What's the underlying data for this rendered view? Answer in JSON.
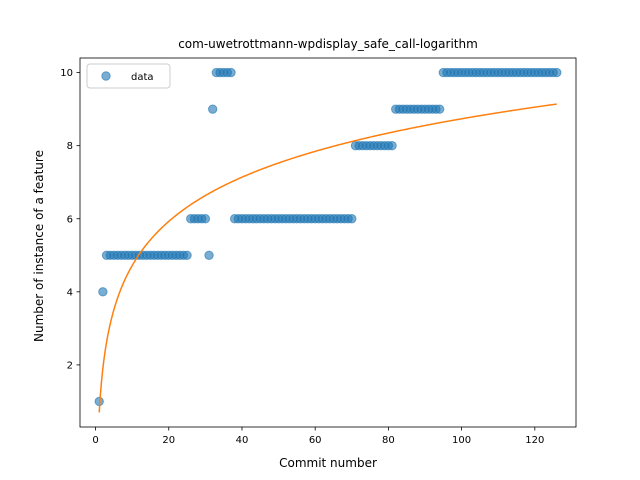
{
  "chart_data": {
    "type": "scatter",
    "title": "com-uwetrottmann-wpdisplay_safe_call-logarithm",
    "xlabel": "Commit number",
    "ylabel": "Number of instance of a feature",
    "xlim": [
      -4.25,
      131.25
    ],
    "ylim": [
      0.3,
      10.4
    ],
    "xticks": [
      0,
      20,
      40,
      60,
      80,
      100,
      120
    ],
    "yticks": [
      2,
      4,
      6,
      8,
      10
    ],
    "grid": false,
    "legend": {
      "position": "top-left",
      "entries": [
        "data"
      ]
    },
    "series": [
      {
        "name": "data",
        "kind": "scatter",
        "color": "#1f77b4",
        "x": [
          1,
          2,
          3,
          4,
          5,
          6,
          7,
          8,
          9,
          10,
          11,
          12,
          13,
          14,
          15,
          16,
          17,
          18,
          19,
          20,
          21,
          22,
          23,
          24,
          25,
          26,
          27,
          28,
          29,
          30,
          31,
          32,
          33,
          34,
          35,
          36,
          37,
          38,
          39,
          40,
          41,
          42,
          43,
          44,
          45,
          46,
          47,
          48,
          49,
          50,
          51,
          52,
          53,
          54,
          55,
          56,
          57,
          58,
          59,
          60,
          61,
          62,
          63,
          64,
          65,
          66,
          67,
          68,
          69,
          70,
          71,
          72,
          73,
          74,
          75,
          76,
          77,
          78,
          79,
          80,
          81,
          82,
          83,
          84,
          85,
          86,
          87,
          88,
          89,
          90,
          91,
          92,
          93,
          94,
          95,
          96,
          97,
          98,
          99,
          100,
          101,
          102,
          103,
          104,
          105,
          106,
          107,
          108,
          109,
          110,
          111,
          112,
          113,
          114,
          115,
          116,
          117,
          118,
          119,
          120,
          121,
          122,
          123,
          124,
          125,
          126
        ],
        "y": [
          1,
          4,
          5,
          5,
          5,
          5,
          5,
          5,
          5,
          5,
          5,
          5,
          5,
          5,
          5,
          5,
          5,
          5,
          5,
          5,
          5,
          5,
          5,
          5,
          5,
          6,
          6,
          6,
          6,
          6,
          5,
          9,
          10,
          10,
          10,
          10,
          10,
          6,
          6,
          6,
          6,
          6,
          6,
          6,
          6,
          6,
          6,
          6,
          6,
          6,
          6,
          6,
          6,
          6,
          6,
          6,
          6,
          6,
          6,
          6,
          6,
          6,
          6,
          6,
          6,
          6,
          6,
          6,
          6,
          6,
          8,
          8,
          8,
          8,
          8,
          8,
          8,
          8,
          8,
          8,
          8,
          9,
          9,
          9,
          9,
          9,
          9,
          9,
          9,
          9,
          9,
          9,
          9,
          9,
          10,
          10,
          10,
          10,
          10,
          10,
          10,
          10,
          10,
          10,
          10,
          10,
          10,
          10,
          10,
          10,
          10,
          10,
          10,
          10,
          10,
          10,
          10,
          10,
          10,
          10,
          10,
          10,
          10,
          10,
          10,
          10
        ]
      },
      {
        "kind": "line",
        "color": "#ff7f0e",
        "formula": "y = 0.7 + 1.745 * ln(x)",
        "x_range": [
          1,
          126
        ]
      }
    ]
  }
}
